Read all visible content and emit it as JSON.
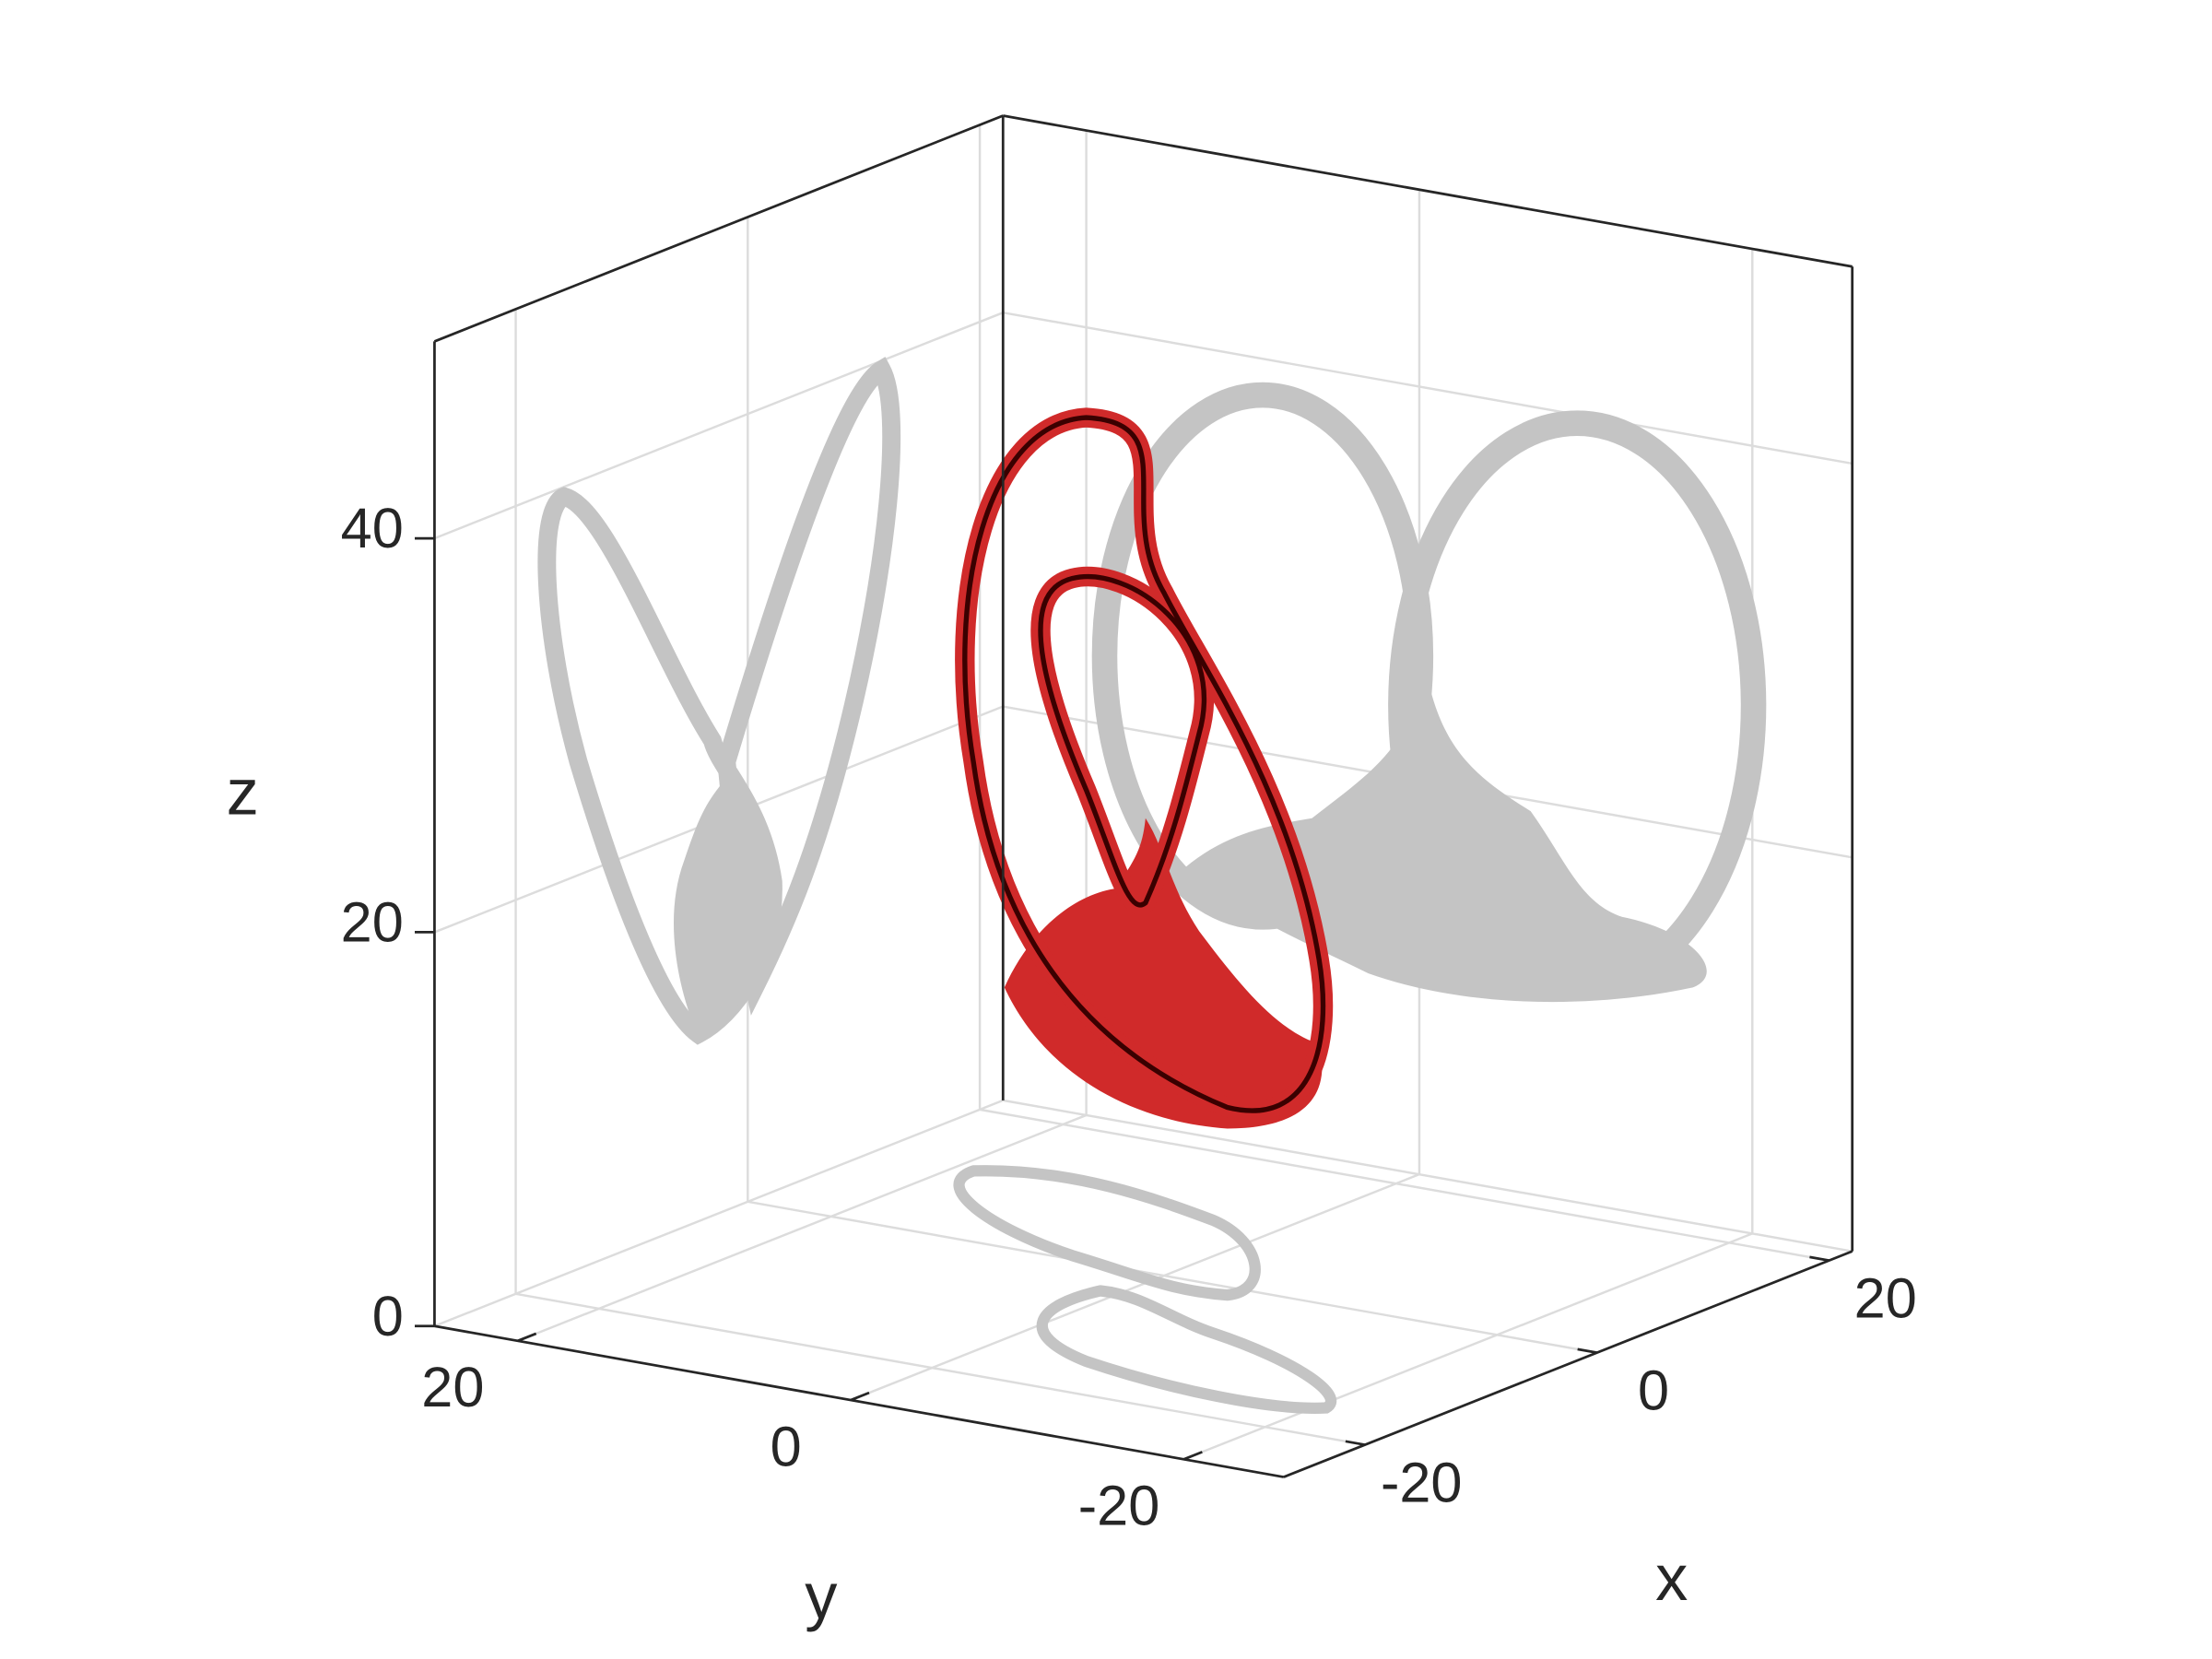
{
  "chart_data": {
    "type": "surface3d",
    "xlabel": "x",
    "ylabel": "y",
    "zlabel": "z",
    "xlim": [
      -27,
      22
    ],
    "xticks": [
      -20,
      0,
      20
    ],
    "ylim": [
      -26,
      25
    ],
    "yticks": [
      -20,
      0,
      20
    ],
    "zlim": [
      0,
      50
    ],
    "zticks": [
      0,
      20,
      40
    ],
    "grid": true,
    "box": true,
    "color": "#d02a2a",
    "shadow_color": "#c4c4c4"
  }
}
